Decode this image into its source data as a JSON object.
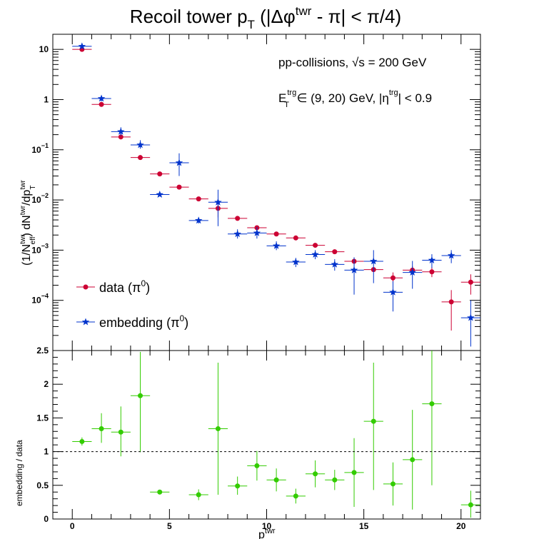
{
  "title": {
    "main": "Recoil tower p",
    "sub": "T",
    "rest": " (|Δφ",
    "sup": "twr",
    "tail": " - π| < π/4)"
  },
  "annotations": {
    "line1_a": "pp-collisions, ",
    "line1_sqrt": "√s",
    "line1_b": " = 200 GeV",
    "line2_E": "E",
    "line2_sup1": "trg",
    "line2_sub1": "T",
    "line2_b": " ∈ (9, 20) GeV, |η",
    "line2_sup2": "trg",
    "line2_c": "| < 0.9"
  },
  "colors": {
    "data": "#cc0033",
    "embedding": "#0033cc",
    "ratio": "#33cc00",
    "frame": "#000000"
  },
  "chart_data": [
    {
      "type": "scatter",
      "yscale": "log",
      "ylim": [
        1e-05,
        20
      ],
      "xlim": [
        -1,
        21
      ],
      "ylabel": {
        "a": "(1/N",
        "sup1": "twr",
        "sub1": "eff",
        "b": ") dN",
        "sup2": "twr",
        "c": "/dp",
        "sub2": "T",
        "sup3": "twr"
      },
      "yticks": [
        {
          "v": 10,
          "label": "10"
        },
        {
          "v": 1,
          "label": "1"
        },
        {
          "v": 0.1,
          "base": "10",
          "exp": "−1"
        },
        {
          "v": 0.01,
          "base": "10",
          "exp": "−2"
        },
        {
          "v": 0.001,
          "base": "10",
          "exp": "−3"
        },
        {
          "v": 0.0001,
          "base": "10",
          "exp": "−4"
        }
      ],
      "legend": {
        "position": "bottom-left",
        "entries": [
          {
            "series": 0,
            "a": "data (π",
            "sup": "0",
            "b": ")"
          },
          {
            "series": 1,
            "a": "embedding (π",
            "sup": "0",
            "b": ")"
          }
        ]
      },
      "series": [
        {
          "name": "data (π0)",
          "marker": "circle",
          "x": [
            0.5,
            1.5,
            2.5,
            3.5,
            4.5,
            5.5,
            6.5,
            7.5,
            8.5,
            9.5,
            10.5,
            11.5,
            12.5,
            13.5,
            14.5,
            15.5,
            16.5,
            17.5,
            18.5,
            19.5,
            20.5
          ],
          "y": [
            10.0,
            0.8,
            0.18,
            0.07,
            0.033,
            0.018,
            0.0105,
            0.0068,
            0.0043,
            0.0028,
            0.0021,
            0.00175,
            0.00125,
            0.00093,
            0.0006,
            0.00041,
            0.00028,
            0.0004,
            0.00037,
            9.3e-05,
            0.00023
          ],
          "ylow": [
            10.0,
            0.8,
            0.18,
            0.07,
            0.033,
            0.018,
            0.0105,
            0.0045,
            0.0043,
            0.0028,
            0.0021,
            0.00175,
            0.00125,
            0.00093,
            0.0006,
            0.00041,
            0.00022,
            0.00033,
            0.00029,
            2.5e-05,
            0.00013
          ],
          "yhigh": [
            10.0,
            0.8,
            0.18,
            0.07,
            0.033,
            0.018,
            0.0105,
            0.0095,
            0.0043,
            0.0028,
            0.0021,
            0.00175,
            0.00125,
            0.00093,
            0.0006,
            0.00041,
            0.00036,
            0.00048,
            0.00046,
            0.00016,
            0.00033
          ]
        },
        {
          "name": "embedding (π0)",
          "marker": "star",
          "x": [
            0.5,
            1.5,
            2.5,
            3.5,
            4.5,
            5.5,
            6.5,
            7.5,
            8.5,
            9.5,
            10.5,
            11.5,
            12.5,
            13.5,
            14.5,
            15.5,
            16.5,
            17.5,
            18.5,
            19.5,
            20.5
          ],
          "y": [
            11.5,
            1.05,
            0.23,
            0.125,
            0.0128,
            0.055,
            0.0039,
            0.009,
            0.0021,
            0.0022,
            0.00122,
            0.00058,
            0.00082,
            0.00052,
            0.0004,
            0.0006,
            0.000145,
            0.00036,
            0.00063,
            0.00078,
            4.5e-05
          ],
          "ylow": [
            10.5,
            0.92,
            0.19,
            0.105,
            0.012,
            0.03,
            0.0034,
            0.003,
            0.0017,
            0.0017,
            0.001,
            0.00046,
            0.00066,
            0.00039,
            0.00013,
            0.00022,
            6e-05,
            0.00017,
            0.00044,
            0.00055,
            1.2e-05
          ],
          "yhigh": [
            12.5,
            1.2,
            0.28,
            0.155,
            0.0136,
            0.085,
            0.0044,
            0.016,
            0.0026,
            0.0029,
            0.0015,
            0.0007,
            0.001,
            0.00066,
            0.00072,
            0.001,
            0.00024,
            0.00061,
            0.00083,
            0.001,
            0.0001
          ]
        }
      ]
    },
    {
      "type": "scatter",
      "ylim": [
        0,
        2.5
      ],
      "xlim": [
        -1,
        21
      ],
      "ylabel": "embedding / data",
      "xlabel": {
        "a": "p",
        "sup": "twr"
      },
      "yticks": [
        0,
        0.5,
        1,
        1.5,
        2,
        2.5
      ],
      "ytick_labels": [
        "0",
        "0.5",
        "1",
        "1.5",
        "2",
        "2.5"
      ],
      "xticks": [
        0,
        5,
        10,
        15,
        20
      ],
      "xtick_labels": [
        "0",
        "5",
        "10",
        "15",
        "20"
      ],
      "reference_line": 1,
      "series": [
        {
          "name": "embedding / data",
          "marker": "circle",
          "x": [
            0.5,
            1.5,
            2.5,
            3.5,
            4.5,
            6.5,
            7.5,
            8.5,
            9.5,
            10.5,
            11.5,
            12.5,
            13.5,
            14.5,
            15.5,
            16.5,
            17.5,
            18.5,
            20.5
          ],
          "y": [
            1.15,
            1.34,
            1.29,
            1.83,
            0.4,
            0.36,
            1.34,
            0.49,
            0.79,
            0.58,
            0.34,
            0.67,
            0.58,
            0.69,
            1.45,
            0.52,
            0.88,
            1.71,
            0.21
          ],
          "ylow": [
            1.09,
            1.13,
            0.93,
            0.99,
            0.37,
            0.28,
            0.36,
            0.36,
            0.57,
            0.41,
            0.23,
            0.47,
            0.43,
            0.18,
            0.43,
            0.2,
            0.14,
            0.5,
            0.02
          ],
          "yhigh": [
            1.21,
            1.57,
            1.67,
            2.48,
            0.43,
            0.44,
            2.32,
            0.63,
            1.01,
            0.75,
            0.45,
            0.87,
            0.73,
            1.2,
            2.32,
            0.84,
            1.62,
            2.5,
            0.42
          ]
        }
      ]
    }
  ]
}
